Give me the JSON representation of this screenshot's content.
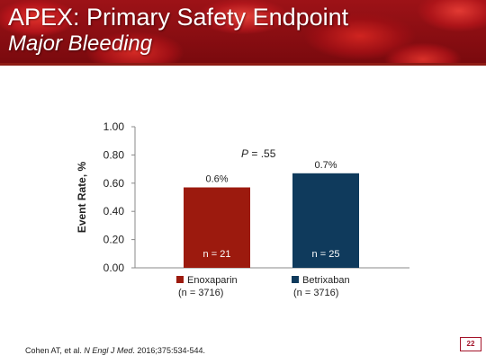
{
  "slide": {
    "title": "APEX: Primary Safety Endpoint",
    "subtitle": "Major Bleeding",
    "p_value_label": "P",
    "p_value_text": " = .55",
    "citation_authors": "Cohen AT, et al. ",
    "citation_journal": "N Engl J Med",
    "citation_rest": ". 2016;375:534-544.",
    "page_number": "22"
  },
  "legend": [
    {
      "label": "Enoxaparin",
      "sub": "(n = 3716)"
    },
    {
      "label": "Betrixaban",
      "sub": "(n = 3716)"
    }
  ],
  "chart_data": {
    "type": "bar",
    "ylabel": "Event Rate, %",
    "ylim": [
      0,
      1.0
    ],
    "yticks": [
      "0.00",
      "0.20",
      "0.40",
      "0.60",
      "0.80",
      "1.00"
    ],
    "ytick_values": [
      0,
      0.2,
      0.4,
      0.6,
      0.8,
      1.0
    ],
    "categories": [
      "Enoxaparin",
      "Betrixaban"
    ],
    "values": [
      0.57,
      0.67
    ],
    "value_labels": [
      "0.6%",
      "0.7%"
    ],
    "n_labels": [
      "n = 21",
      "n = 25"
    ],
    "colors": [
      "#9c1a0e",
      "#0f3a5c"
    ],
    "grid": false
  }
}
